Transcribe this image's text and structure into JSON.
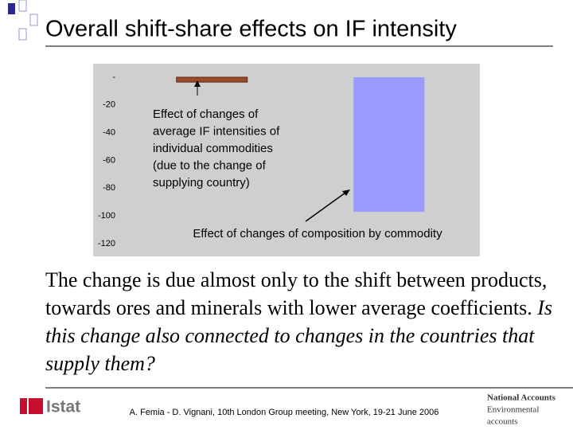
{
  "title": "Overall shift-share effects on IF intensity",
  "chart_data": {
    "type": "bar",
    "categories": [
      null,
      null
    ],
    "values": [
      -3.5,
      -97
    ],
    "colors": [
      "#9c4a2a",
      "#9999ff"
    ],
    "ylim": [
      -120,
      0
    ],
    "yticks": [
      {
        "value": 0,
        "label": "-"
      },
      -20,
      -40,
      -60,
      -80,
      -100,
      -120
    ],
    "grid": false,
    "annotations": [
      {
        "lines": [
          "Effect of changes of",
          "average IF intensities of",
          "individual commodities",
          "(due to the change of",
          "supplying country)"
        ]
      },
      {
        "lines": [
          "Effect of changes of composition by commodity"
        ]
      }
    ]
  },
  "body": {
    "normal": "The change is due almost only to the shift between products, towards ores and minerals with lower average coefficients.",
    "italic": "Is this change also connected to changes in the countries that supply them?"
  },
  "footer": {
    "citation": "A. Femia - D. Vignani, 10th London Group meeting, New York, 19-21 June 2006",
    "logo": "Istat",
    "unit": "National Accounts",
    "subunit": [
      "Environmental",
      "accounts"
    ]
  }
}
